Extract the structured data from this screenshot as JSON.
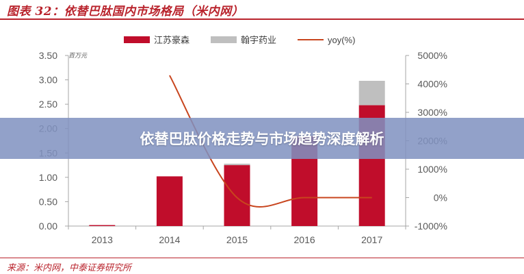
{
  "header": {
    "title": "图表 32：依替巴肽国内市场格局（米内网）"
  },
  "banner": {
    "text": "依替巴肽价格走势与市场趋势深度解析"
  },
  "footer": {
    "source": "来源：米内网，中泰证券研究所"
  },
  "colors": {
    "accent": "#b9232c",
    "series1": "#c00d2b",
    "series2": "#bfbfbf",
    "line": "#c8451e"
  },
  "chart_data": {
    "type": "bar",
    "categories": [
      "2013",
      "2014",
      "2015",
      "2016",
      "2017"
    ],
    "series": [
      {
        "name": "江苏豪森",
        "kind": "bar",
        "axis": "left",
        "values": [
          0.02,
          1.02,
          1.25,
          1.85,
          2.48
        ]
      },
      {
        "name": "翰宇药业",
        "kind": "bar",
        "axis": "left",
        "values": [
          0,
          0,
          0.03,
          0,
          0.5
        ]
      },
      {
        "name": "yoy(%)",
        "kind": "line",
        "axis": "right",
        "values": [
          null,
          4300,
          0,
          0,
          0
        ]
      }
    ],
    "stacked": true,
    "ylabel": "百万元",
    "ylim": [
      0,
      3.5
    ],
    "yticks": [
      "0.00",
      "0.50",
      "1.00",
      "1.50",
      "2.00",
      "2.50",
      "3.00",
      "3.50"
    ],
    "y2lim": [
      -1000,
      5000
    ],
    "y2ticks": [
      "-1000%",
      "0%",
      "1000%",
      "2000%",
      "3000%",
      "4000%",
      "5000%"
    ],
    "legend": "top-center",
    "grid": false
  }
}
